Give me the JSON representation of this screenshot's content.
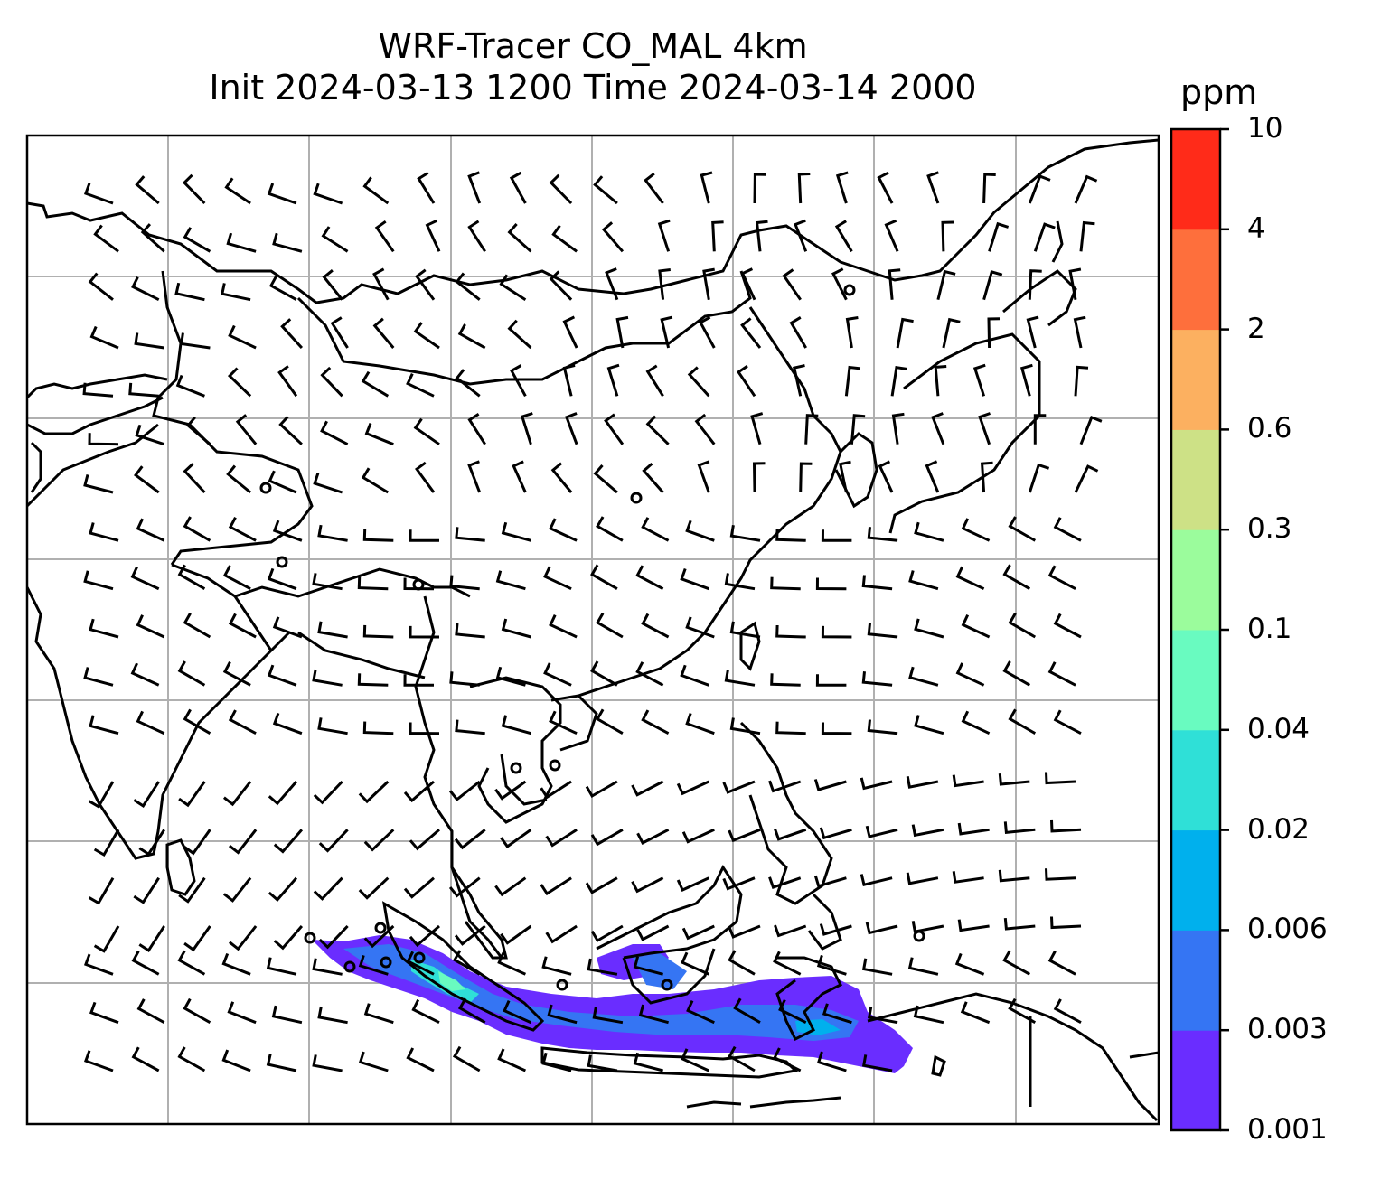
{
  "title": {
    "line1": "WRF-Tracer CO_MAL 4km",
    "line2": "Init 2024-03-13 1200 Time 2024-03-14 2000"
  },
  "colorbar": {
    "unit": "ppm",
    "ticks": [
      "0.001",
      "0.003",
      "0.006",
      "0.02",
      "0.04",
      "0.1",
      "0.3",
      "0.6",
      "2",
      "4",
      "10"
    ],
    "colors": [
      "#6a2dff",
      "#3575f3",
      "#00b0ed",
      "#2fe0d7",
      "#69fbc0",
      "#9bfc9c",
      "#cde186",
      "#fcb060",
      "#fe6f3c",
      "#ff2b19"
    ]
  },
  "map": {
    "grid": true,
    "field": "CO_MAL tracer concentration",
    "plume_region": "Sumatra / Java / southern Borneo"
  }
}
